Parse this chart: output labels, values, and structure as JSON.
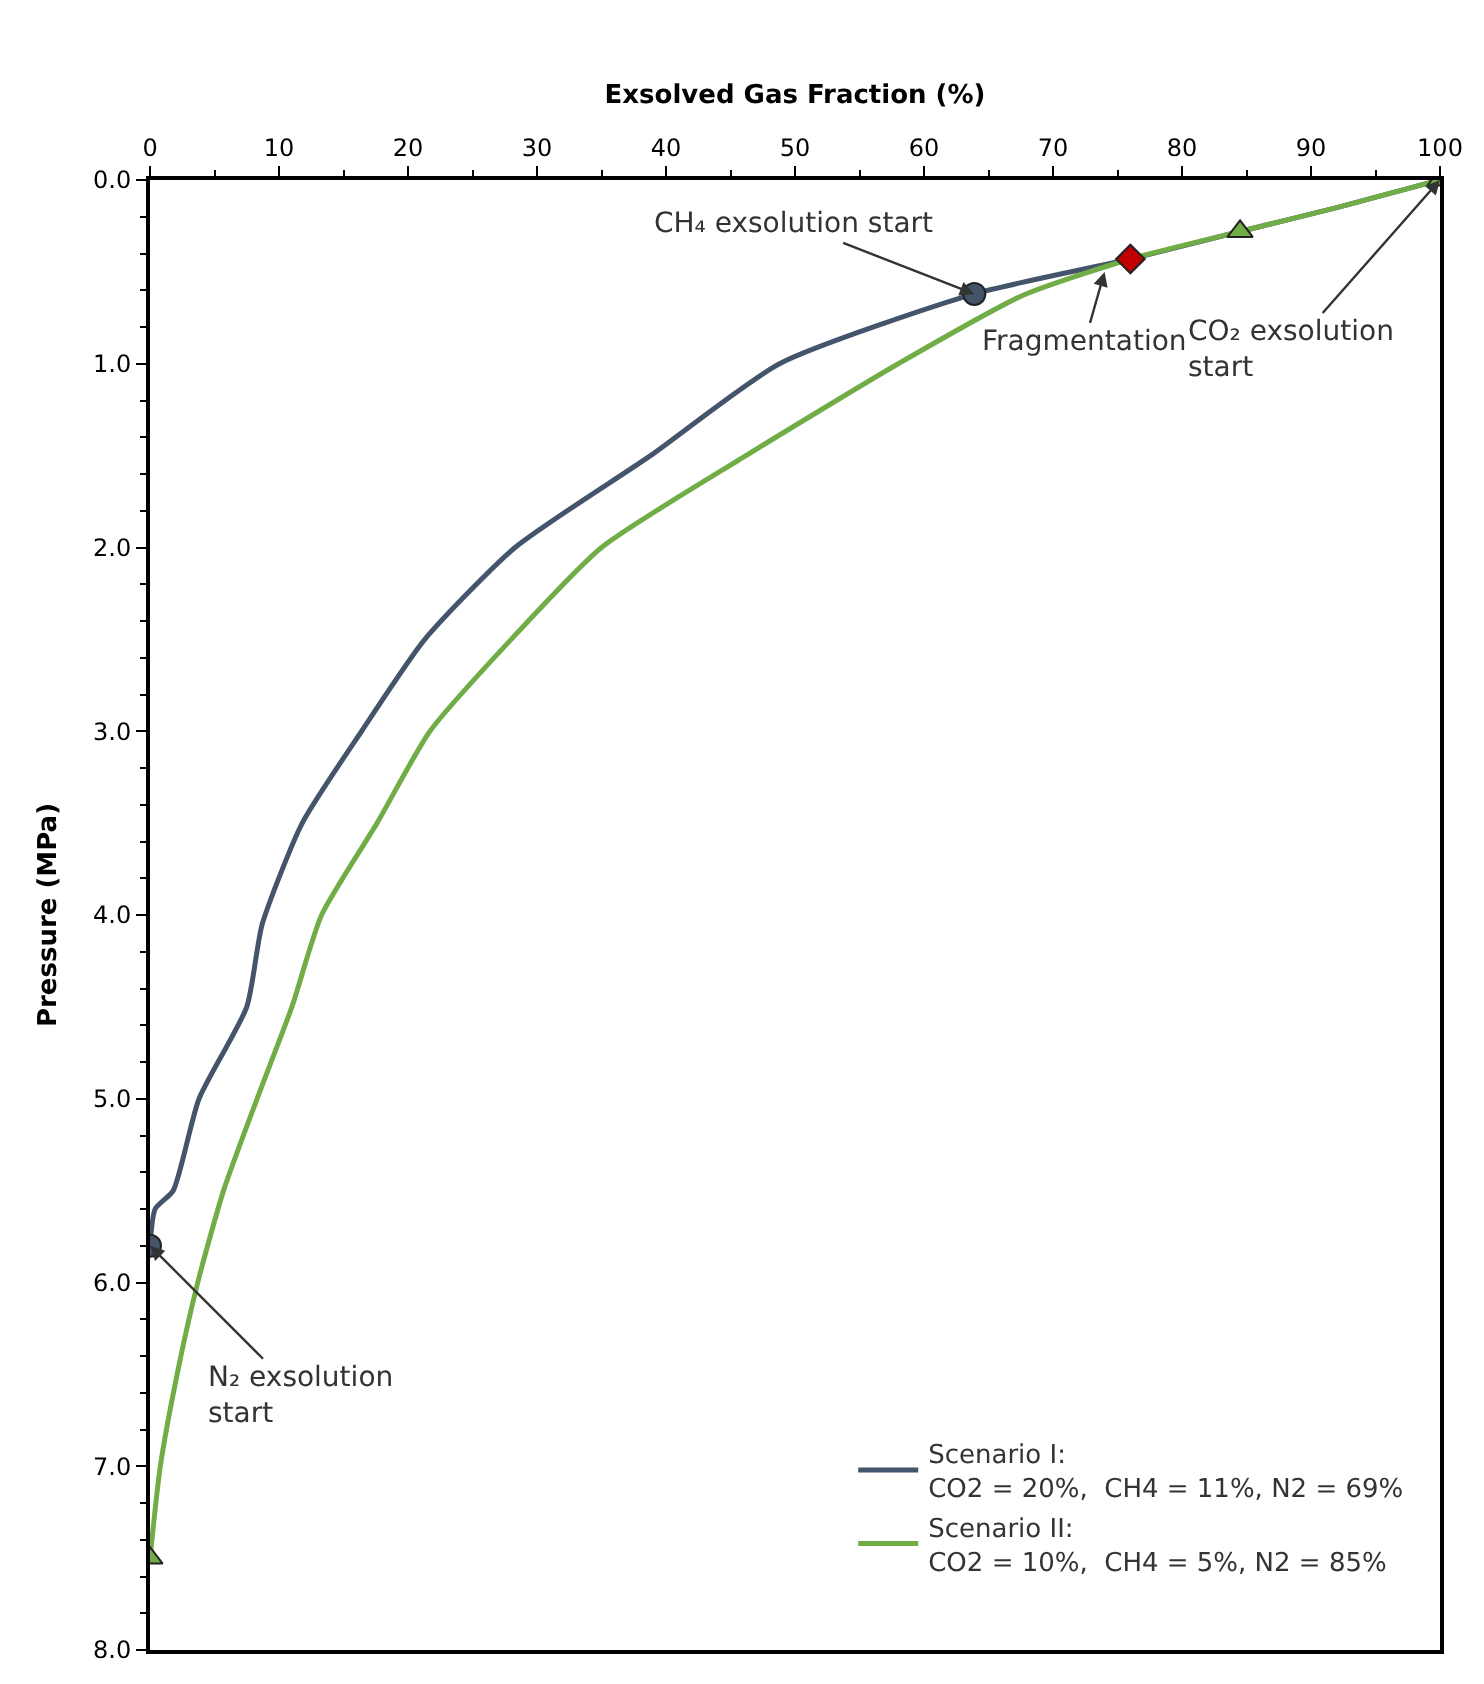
{
  "chart_data": {
    "type": "line",
    "xlabel": "Exsolved Gas Fraction (%)",
    "ylabel": "Pressure (MPa)",
    "xlim": [
      0,
      100
    ],
    "xticks": [
      0,
      10,
      20,
      30,
      40,
      50,
      60,
      70,
      80,
      90,
      100
    ],
    "ylim": [
      8,
      0
    ],
    "yticks": [
      {
        "value": 0,
        "label": "0.0"
      },
      {
        "value": 1,
        "label": "1.0"
      },
      {
        "value": 2,
        "label": "2.0"
      },
      {
        "value": 3,
        "label": "3.0"
      },
      {
        "value": 4,
        "label": "4.0"
      },
      {
        "value": 5,
        "label": "5.0"
      },
      {
        "value": 6,
        "label": "6.0"
      },
      {
        "value": 7,
        "label": "7.0"
      },
      {
        "value": 8,
        "label": "8.0"
      }
    ],
    "legend": "bottom right",
    "marker": "none",
    "line_style": "solid",
    "series": [
      {
        "name": "Scenario I:\nCO2 = 20%,  CH4 = 11%, N2 = 69%",
        "color": "#44546a",
        "x": [
          0,
          0.4,
          1.8,
          3.8,
          7.5,
          8.7,
          11.8,
          16.4,
          21.3,
          28.3,
          38.8,
          48.8,
          63.9,
          76,
          84.5,
          92,
          100
        ],
        "values": [
          5.8,
          5.6,
          5.5,
          5.0,
          4.5,
          4.05,
          3.5,
          3.0,
          2.5,
          2.0,
          1.5,
          1.0,
          0.62,
          0.43,
          0.28,
          0.15,
          0
        ]
      },
      {
        "name": "Scenario II:\nCO2 = 10%,  CH4 = 5%, N2 = 85%",
        "color": "#70ad47",
        "x": [
          0,
          0.8,
          2.1,
          3.7,
          5.7,
          8.3,
          11,
          13.3,
          17.6,
          21.7,
          28,
          35,
          46.2,
          58,
          67.6,
          76,
          84.5,
          92,
          100
        ],
        "values": [
          7.5,
          7.0,
          6.5,
          6.0,
          5.5,
          5.0,
          4.5,
          4.0,
          3.5,
          3.0,
          2.5,
          2.0,
          1.5,
          1.0,
          0.63,
          0.43,
          0.28,
          0.15,
          0
        ]
      },
      {
        "type": "scatter",
        "marker": "circle",
        "color": "#44546a",
        "x": [
          0,
          63.9
        ],
        "values": [
          5.8,
          0.62
        ]
      },
      {
        "type": "scatter",
        "marker": "triangle",
        "color": "#70ad47",
        "x": [
          0,
          84.5,
          100
        ],
        "values": [
          7.5,
          0.28,
          0
        ]
      },
      {
        "type": "scatter",
        "marker": "diamond",
        "color": "#c00000",
        "x": [
          76
        ],
        "values": [
          0.43
        ]
      }
    ],
    "annotations": [
      {
        "text": "CH₄ exsolution start",
        "x": 63.9,
        "y": 0.62
      },
      {
        "text": "Fragmentation",
        "x": 74,
        "y": 0.5
      },
      {
        "text": "CO₂ exsolution\nstart",
        "x": 100,
        "y": 0
      },
      {
        "text": "N₂ exsolution\nstart",
        "x": 0,
        "y": 5.8
      }
    ]
  }
}
